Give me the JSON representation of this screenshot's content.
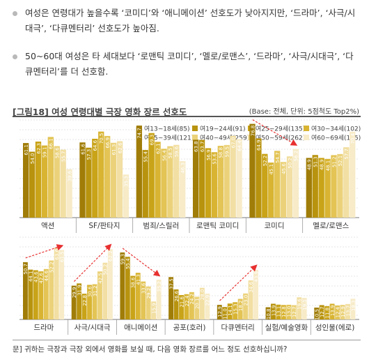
{
  "bullets": [
    "여성은 연령대가 높을수록 ‘코미디’와 ‘애니메이션’ 선호도가 낮아지지만, ‘드라마’, ‘사극/시대극’, ‘다큐멘터리’ 선호도가 높아짐.",
    "50~60대 여성은 타 세대보다 ‘로맨틱 코미디’, ‘멜로/로맨스’, ‘드라마’, ‘사극/시대극’, ‘다큐멘터리’를 더 선호함."
  ],
  "figure": {
    "title": "[그림18]  여성 연령대별 극장 영화 장르 선호도",
    "base_note": "(Base: 전체, 단위: 5점척도 Top2%)",
    "question": "문] 귀하는 극장과 극장 외에서 영화를 보실 때, 다음 영화 장르를 어느 정도 선호하십니까?"
  },
  "chart_data": {
    "type": "bar",
    "y_unit": "5점척도 Top2%",
    "series": [
      {
        "name": "여13~18세(85)",
        "color": "#a07d08"
      },
      {
        "name": "여19~24세(91)",
        "color": "#b8930e"
      },
      {
        "name": "여25~29세(135)",
        "color": "#c9a318"
      },
      {
        "name": "여30~34세(102)",
        "color": "#d8b432"
      },
      {
        "name": "여35~39세(121)",
        "color": "#e3c455"
      },
      {
        "name": "여40~49세(259)",
        "color": "#ebd27a"
      },
      {
        "name": "여50~59세(262)",
        "color": "#f2dfa3"
      },
      {
        "name": "여60~69세(185)",
        "color": "#f7ebc8"
      }
    ],
    "groups": [
      {
        "label": "액션",
        "values": [
          61.1,
          54.0,
          62.3,
          59.1,
          66.1,
          58.6,
          55.7,
          39.6
        ]
      },
      {
        "label": "SF/판타지",
        "values": [
          61.6,
          57.3,
          64.6,
          70.5,
          66.9,
          61.3,
          62.6,
          35.3
        ]
      },
      {
        "label": "범죄/스릴러",
        "values": [
          74.7,
          55.4,
          69.3,
          62.1,
          56.4,
          58.5,
          59.6,
          46.3
        ]
      },
      {
        "label": "로맨틱 코미디",
        "values": [
          63.8,
          63.7,
          56.9,
          53.6,
          58.8,
          59.5,
          67.0,
          64.4
        ]
      },
      {
        "label": "코미디",
        "values": [
          76.8,
          64.9,
          52.2,
          45.1,
          54.7,
          45.6,
          50.2,
          56.2
        ]
      },
      {
        "label": "멜로/로맨스",
        "values": [
          48.9,
          51.3,
          48.9,
          48.1,
          51.2,
          52.1,
          57.7,
          70.4
        ]
      },
      {
        "label": "드라마",
        "values": [
          50.7,
          44.1,
          43.6,
          42.6,
          44.6,
          52.2,
          63.6,
          61.5
        ]
      },
      {
        "label": "사극/시대극",
        "values": [
          29.9,
          31.9,
          22.8,
          30.6,
          31.2,
          42.5,
          50.2,
          62.2
        ]
      },
      {
        "label": "애니메이션",
        "values": [
          59.3,
          55.4,
          38.6,
          41.3,
          33.6,
          29.2,
          15.9,
          35.2
        ]
      },
      {
        "label": "공포(호러)",
        "values": [
          37.5,
          26.6,
          21.6,
          22.4,
          24.2,
          20.1,
          28.0,
          22.9
        ]
      },
      {
        "label": "다큐멘터리",
        "values": [
          12.9,
          11.0,
          14.1,
          15.3,
          18.2,
          23.0,
          34.6,
          43.9
        ]
      },
      {
        "label": "실험/예술영화",
        "values": [
          10.8,
          13.9,
          13.1,
          12.8,
          13.0,
          12.7,
          19.6,
          19.1
        ]
      },
      {
        "label": "성인물(에로)",
        "values": [
          10.5,
          12.7,
          11.8,
          13.9,
          12.4,
          12.9,
          13.7,
          18.3
        ]
      }
    ],
    "trend_arrows": [
      "코미디",
      "드라마",
      "사극/시대극",
      "애니메이션",
      "다큐멘터리"
    ],
    "accent_color": "#e83030"
  }
}
